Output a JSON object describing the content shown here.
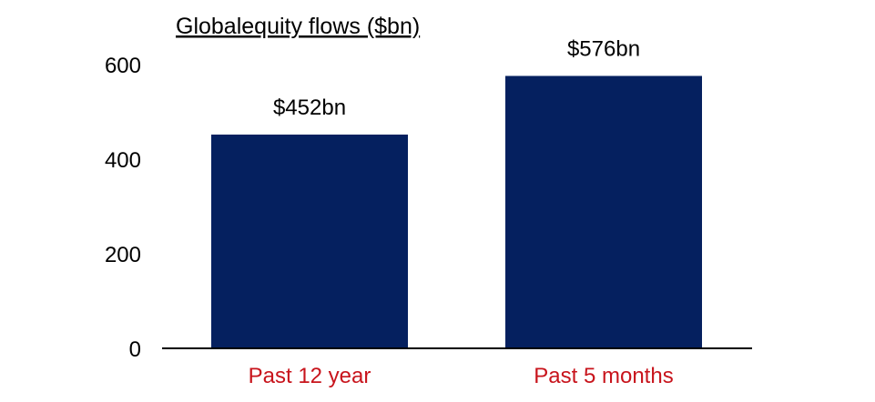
{
  "colors": {
    "bar": "#05205F",
    "category_text": "#C8141C",
    "axis": "#000000"
  },
  "chart_data": {
    "type": "bar",
    "title": "Globalequity flows ($bn)",
    "xlabel": "",
    "ylabel": "",
    "categories": [
      "Past 12 year",
      "Past 5 months"
    ],
    "values": [
      452,
      576
    ],
    "data_labels": [
      "$452bn",
      "$576bn"
    ],
    "ylim": [
      0,
      600
    ],
    "y_ticks": [
      0,
      200,
      400,
      600
    ],
    "y_tick_labels": [
      "0",
      "200",
      "400",
      "600"
    ],
    "grid": false,
    "legend": "none"
  }
}
